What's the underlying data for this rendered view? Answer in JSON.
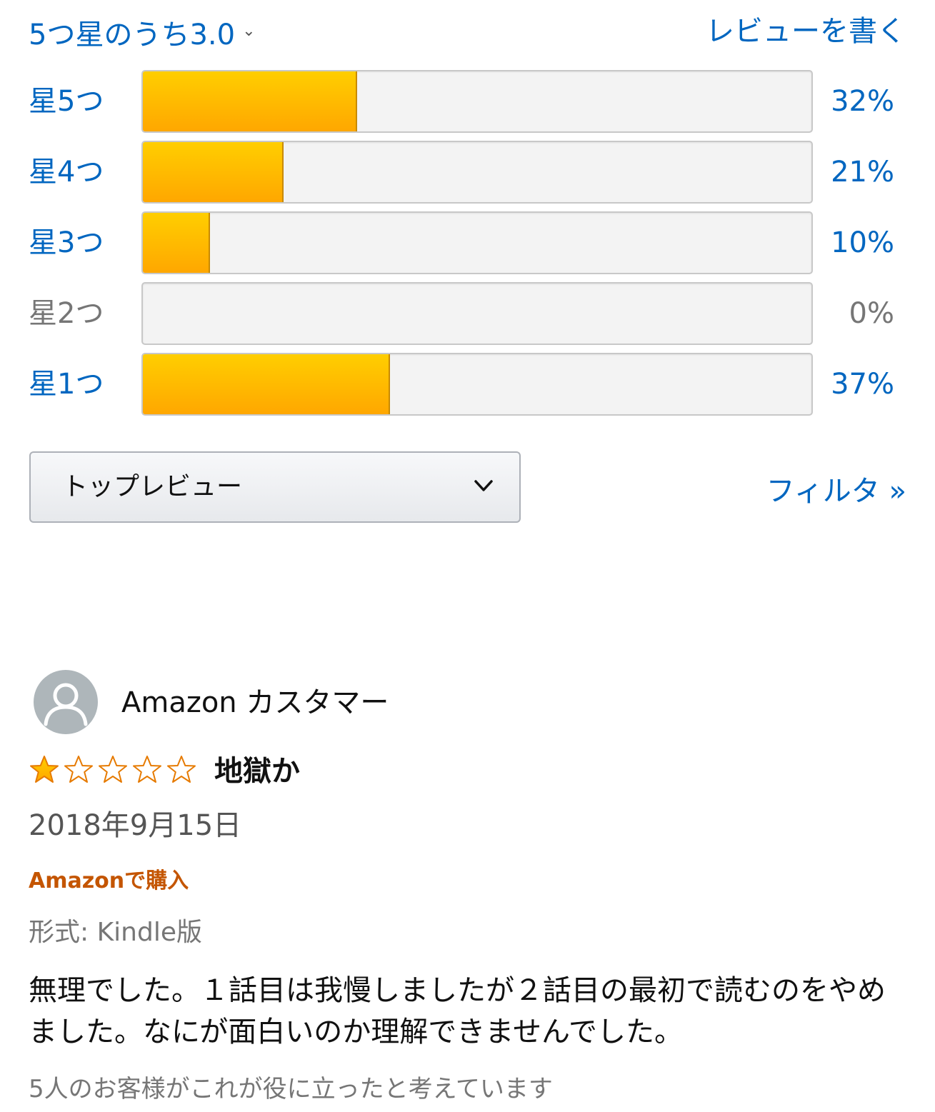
{
  "header": {
    "rating_summary": "5つ星のうち3.0",
    "write_review": "レビューを書く"
  },
  "histogram": [
    {
      "label": "星5つ",
      "percent_text": "32%",
      "percent": 32
    },
    {
      "label": "星4つ",
      "percent_text": "21%",
      "percent": 21
    },
    {
      "label": "星3つ",
      "percent_text": "10%",
      "percent": 10
    },
    {
      "label": "星2つ",
      "percent_text": "0%",
      "percent": 0
    },
    {
      "label": "星1つ",
      "percent_text": "37%",
      "percent": 37
    }
  ],
  "sort": {
    "selected": "トップレビュー"
  },
  "filter_label": "フィルタ »",
  "review": {
    "reviewer": "Amazon カスタマー",
    "rating": 1,
    "rating_max": 5,
    "title": "地獄か",
    "date": "2018年9月15日",
    "verified": "Amazonで購入",
    "format": "形式: Kindle版",
    "body": "無理でした。１話目は我慢しましたが２話目の最初で読むのをやめました。なにが面白いのか理解できませんでした。",
    "helpful": "5人のお客様がこれが役に立ったと考えています"
  },
  "colors": {
    "link": "#0066c0",
    "bar_fill": "#ffa700",
    "star": "#e67a00",
    "verified": "#c45500"
  },
  "icons": {
    "avatar": "person-icon",
    "sort_chevron": "chevron-down-icon",
    "summary_chevron": "chevron-down-icon",
    "star": "star-icon"
  }
}
